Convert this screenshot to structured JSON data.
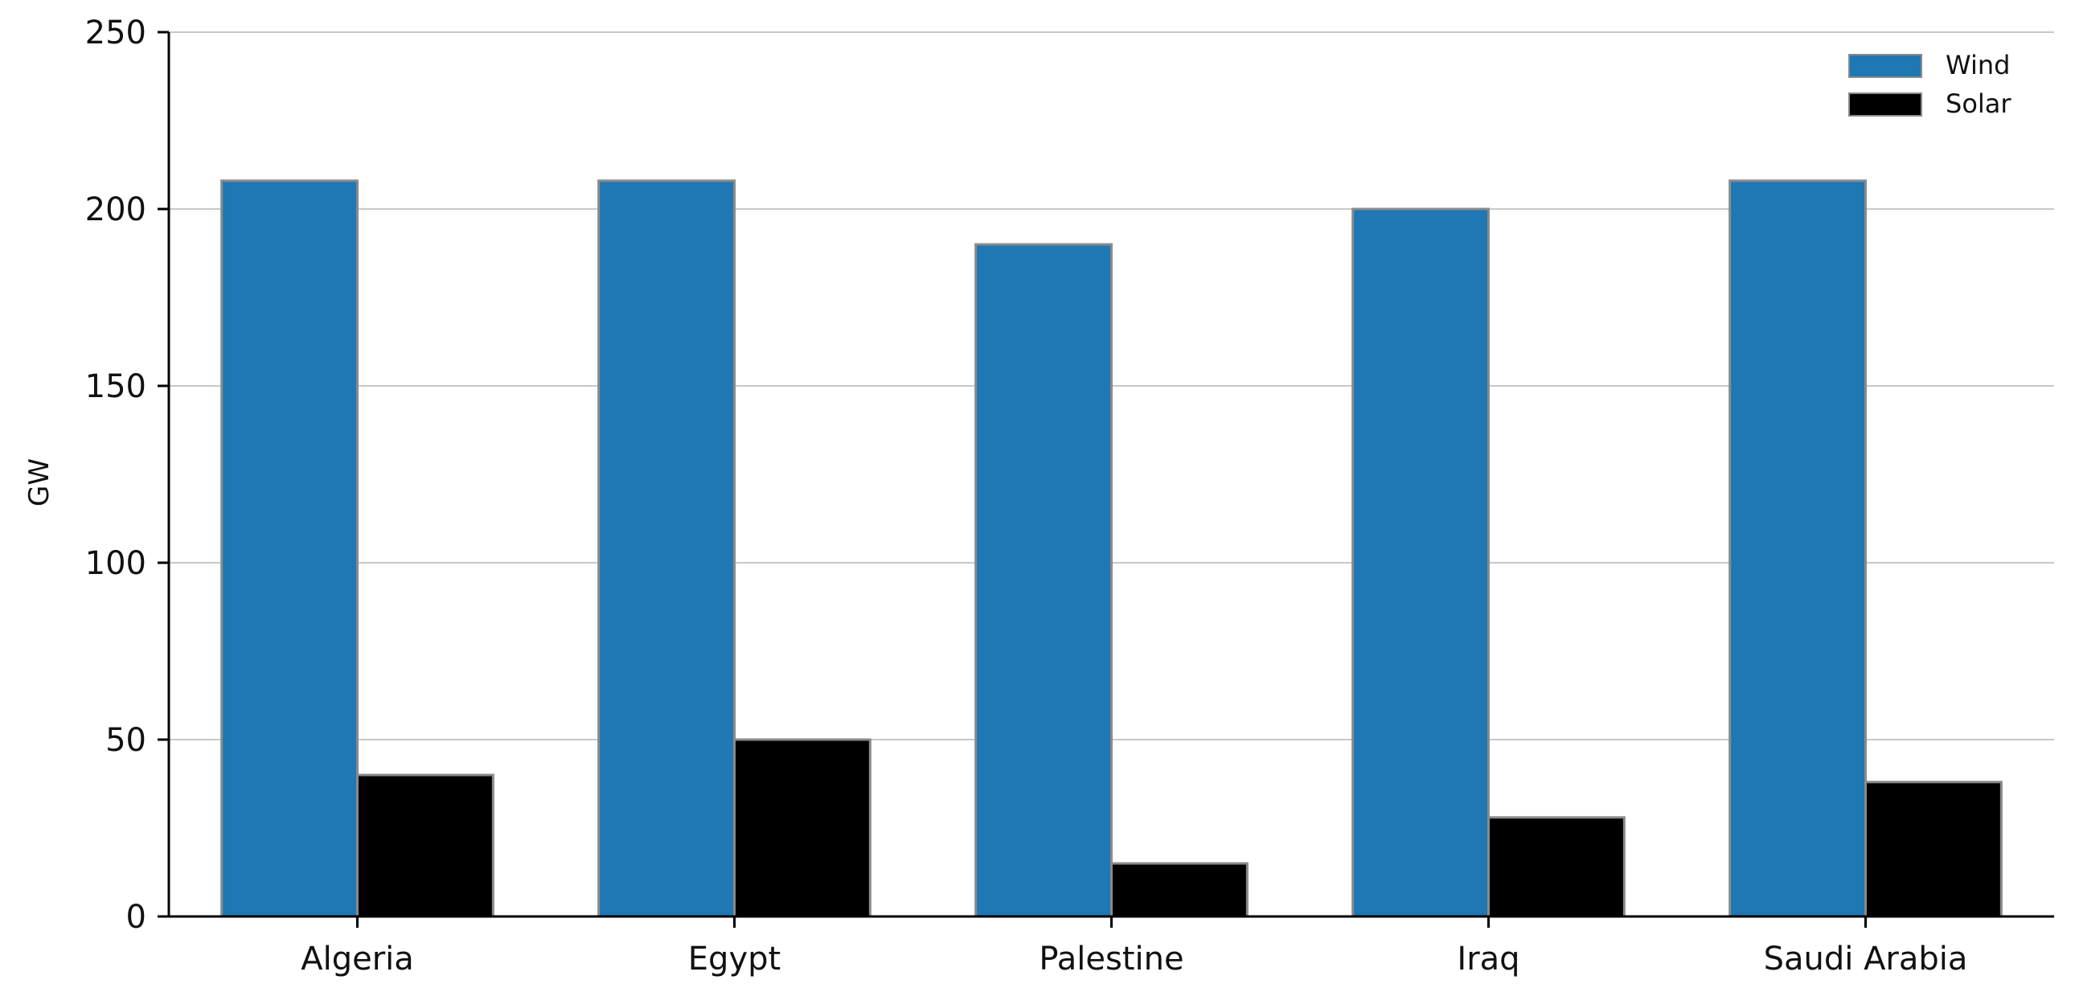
{
  "chart_data": {
    "type": "bar",
    "categories": [
      "Algeria",
      "Egypt",
      "Palestine",
      "Iraq",
      "Saudi Arabia"
    ],
    "series": [
      {
        "name": "Wind",
        "color": "#1f77b4",
        "values": [
          208,
          208,
          190,
          200,
          208
        ]
      },
      {
        "name": "Solar",
        "color": "#000000",
        "values": [
          40,
          50,
          15,
          28,
          38
        ]
      }
    ],
    "ylabel": "GW",
    "ylim": [
      0,
      250
    ],
    "yticks": [
      0,
      50,
      100,
      150,
      200,
      250
    ],
    "grid": true,
    "legend": "top-right"
  }
}
